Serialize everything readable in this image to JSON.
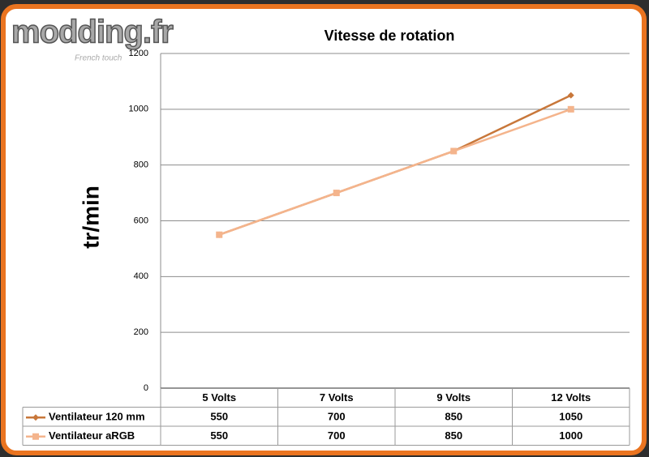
{
  "watermark": "modding.fr",
  "watermark_tagline": "French touch",
  "chart_data": {
    "type": "line",
    "title": "Vitesse de rotation",
    "y_label": "tr/min",
    "categories": [
      "5 Volts",
      "7 Volts",
      "9 Volts",
      "12 Volts"
    ],
    "series": [
      {
        "name": "Ventilateur 120 mm",
        "color": "#c8773a",
        "marker": "diamond",
        "values": [
          550,
          700,
          850,
          1050
        ]
      },
      {
        "name": "Ventilateur aRGB",
        "color": "#f4b48c",
        "marker": "square",
        "values": [
          550,
          700,
          850,
          1000
        ]
      }
    ],
    "ylim": [
      0,
      1200
    ],
    "yticks": [
      0,
      200,
      400,
      600,
      800,
      1000,
      1200
    ],
    "grid": true,
    "data_table": true
  }
}
